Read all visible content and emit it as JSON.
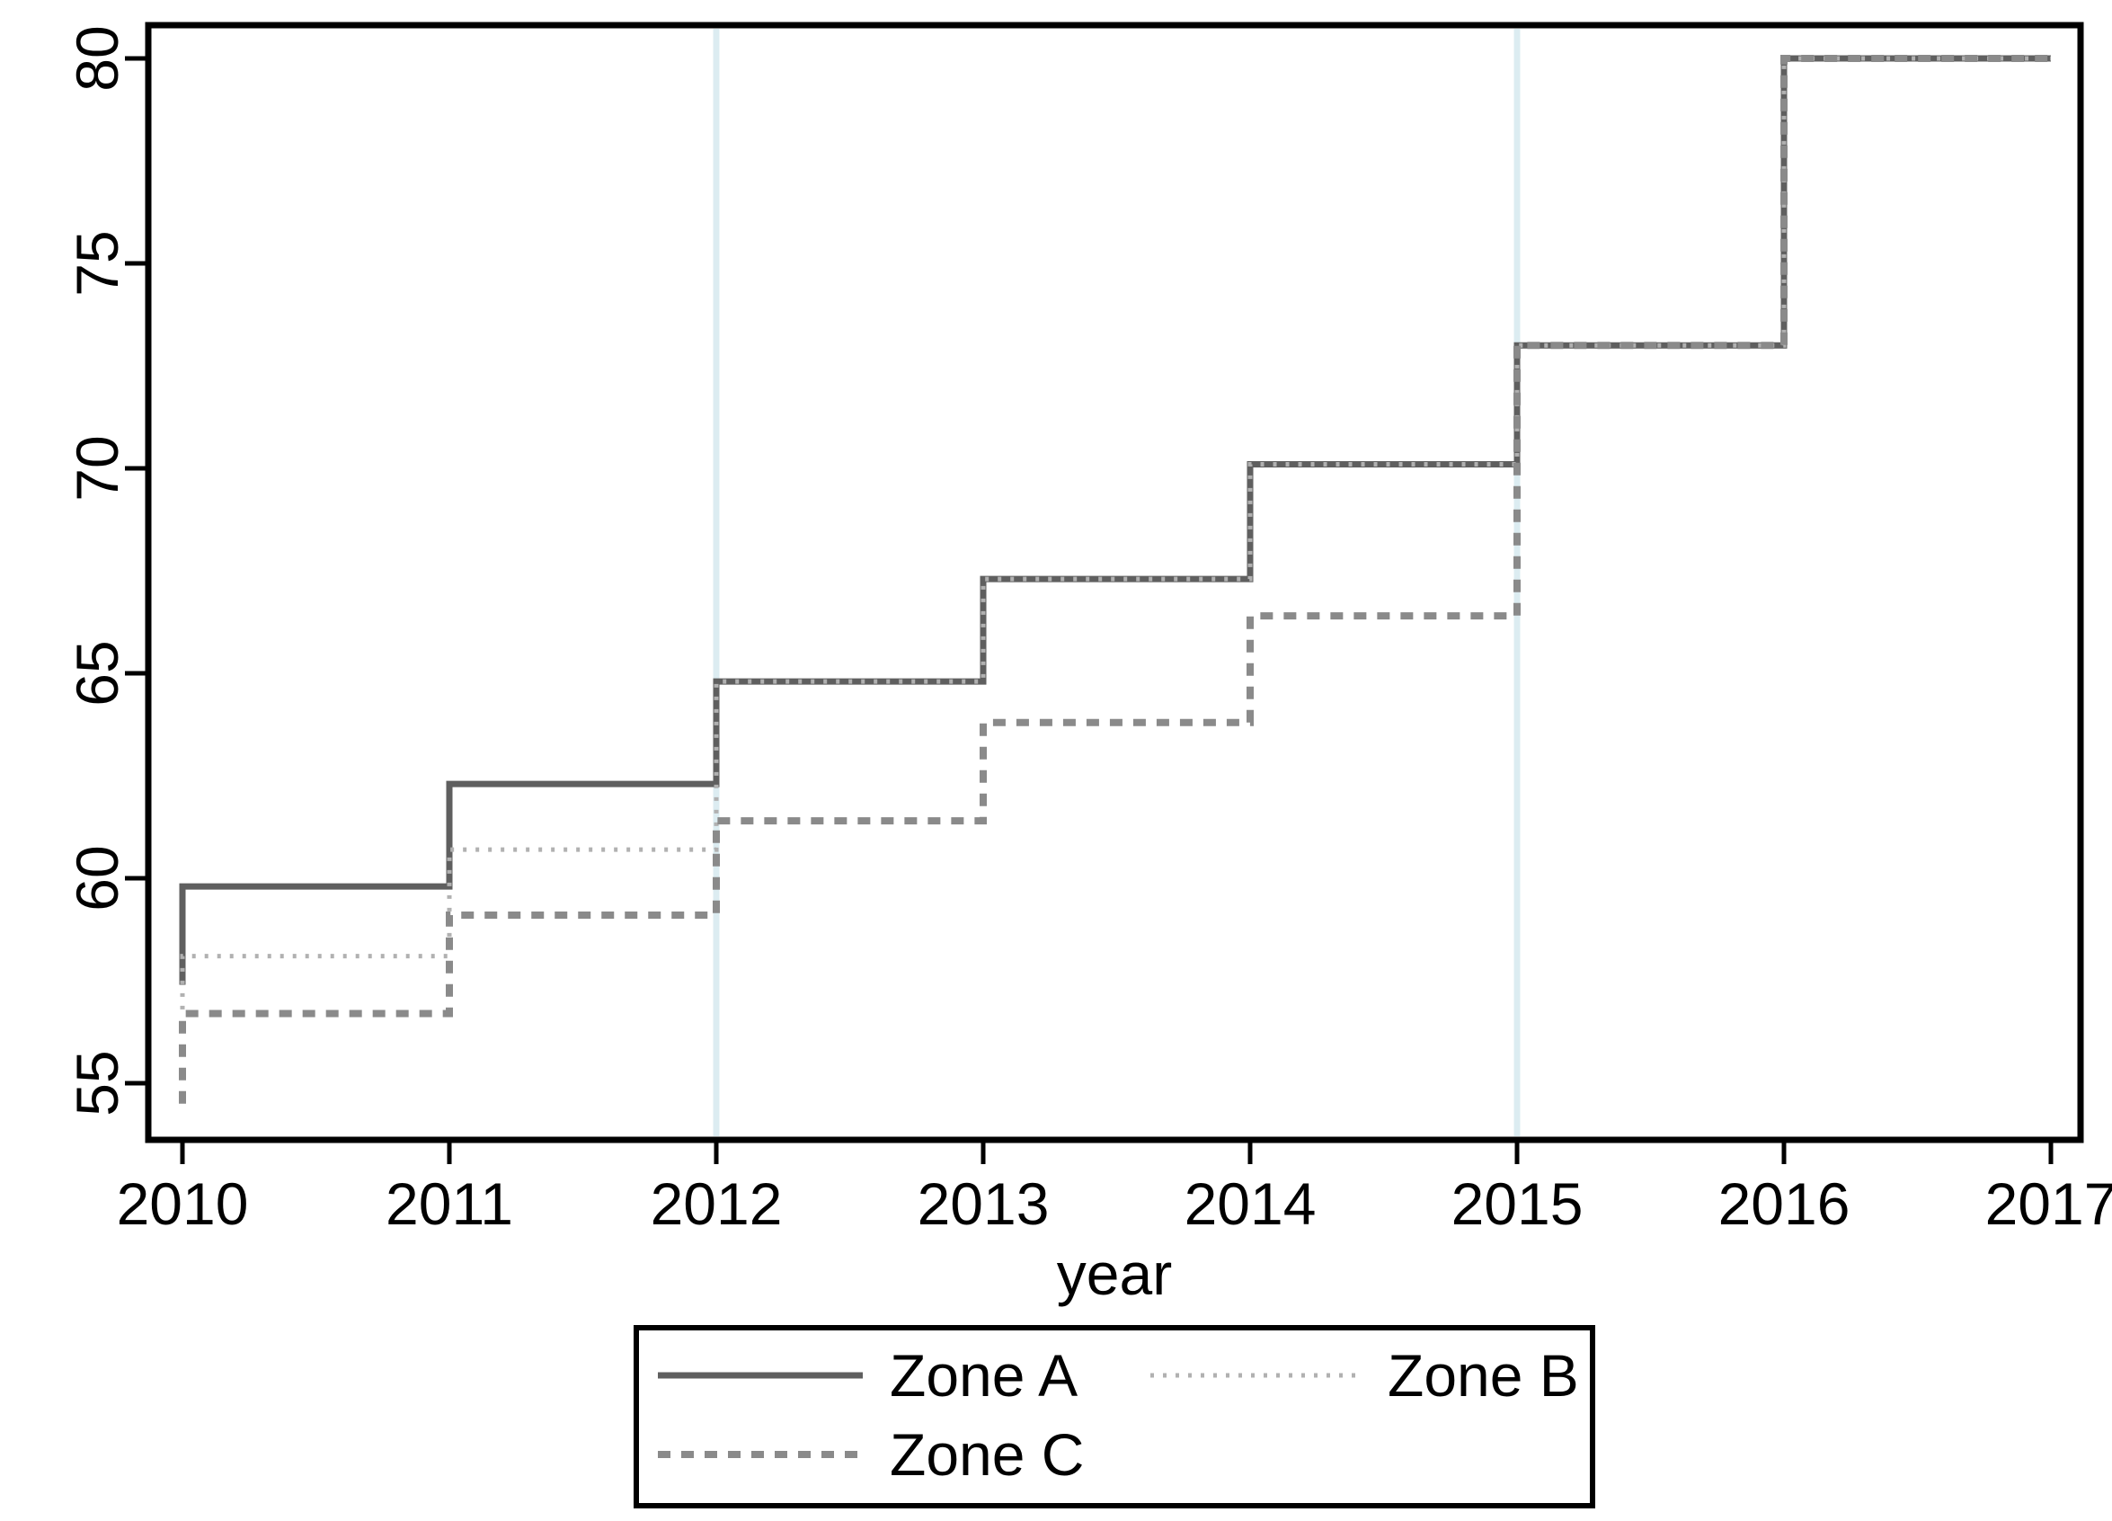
{
  "figure": {
    "background": "#ffffff",
    "border_color": "#000000",
    "tick_color": "#000000"
  },
  "chart_data": {
    "type": "line",
    "step_style": "step (vertical jump at year, then flat to next year)",
    "title": "",
    "xlabel": "year",
    "ylabel": "",
    "x": [
      2010,
      2011,
      2012,
      2013,
      2014,
      2015,
      2016,
      2017
    ],
    "x_ticks": [
      2010,
      2011,
      2012,
      2013,
      2014,
      2015,
      2016,
      2017
    ],
    "y_ticks": [
      55,
      60,
      65,
      70,
      75,
      80
    ],
    "xlim": [
      2009.87,
      2017.11
    ],
    "ylim": [
      53.6,
      80.8
    ],
    "grid": "vertical reference lines only",
    "grid_vertical_lines_x": [
      2012,
      2015
    ],
    "gridline_color": "#dcecf1",
    "legend_position": "bottom-center",
    "series": [
      {
        "name": "Zone A",
        "style": "solid",
        "color": "#5f5f5f",
        "width": 7,
        "dash": "",
        "values": [
          57.4,
          59.8,
          62.3,
          64.8,
          67.3,
          70.1,
          73.0,
          80.0
        ]
      },
      {
        "name": "Zone B",
        "style": "dotted",
        "color": "#b1b1b1",
        "width": 5,
        "dash": "4 10",
        "values": [
          56.8,
          58.1,
          60.7,
          64.8,
          67.3,
          70.1,
          73.0,
          80.0
        ]
      },
      {
        "name": "Zone C",
        "style": "dashed",
        "color": "#8a8a8a",
        "width": 8,
        "dash": "14 12",
        "values": [
          54.5,
          56.7,
          59.1,
          61.4,
          63.8,
          66.4,
          73.0,
          80.0
        ]
      }
    ]
  }
}
